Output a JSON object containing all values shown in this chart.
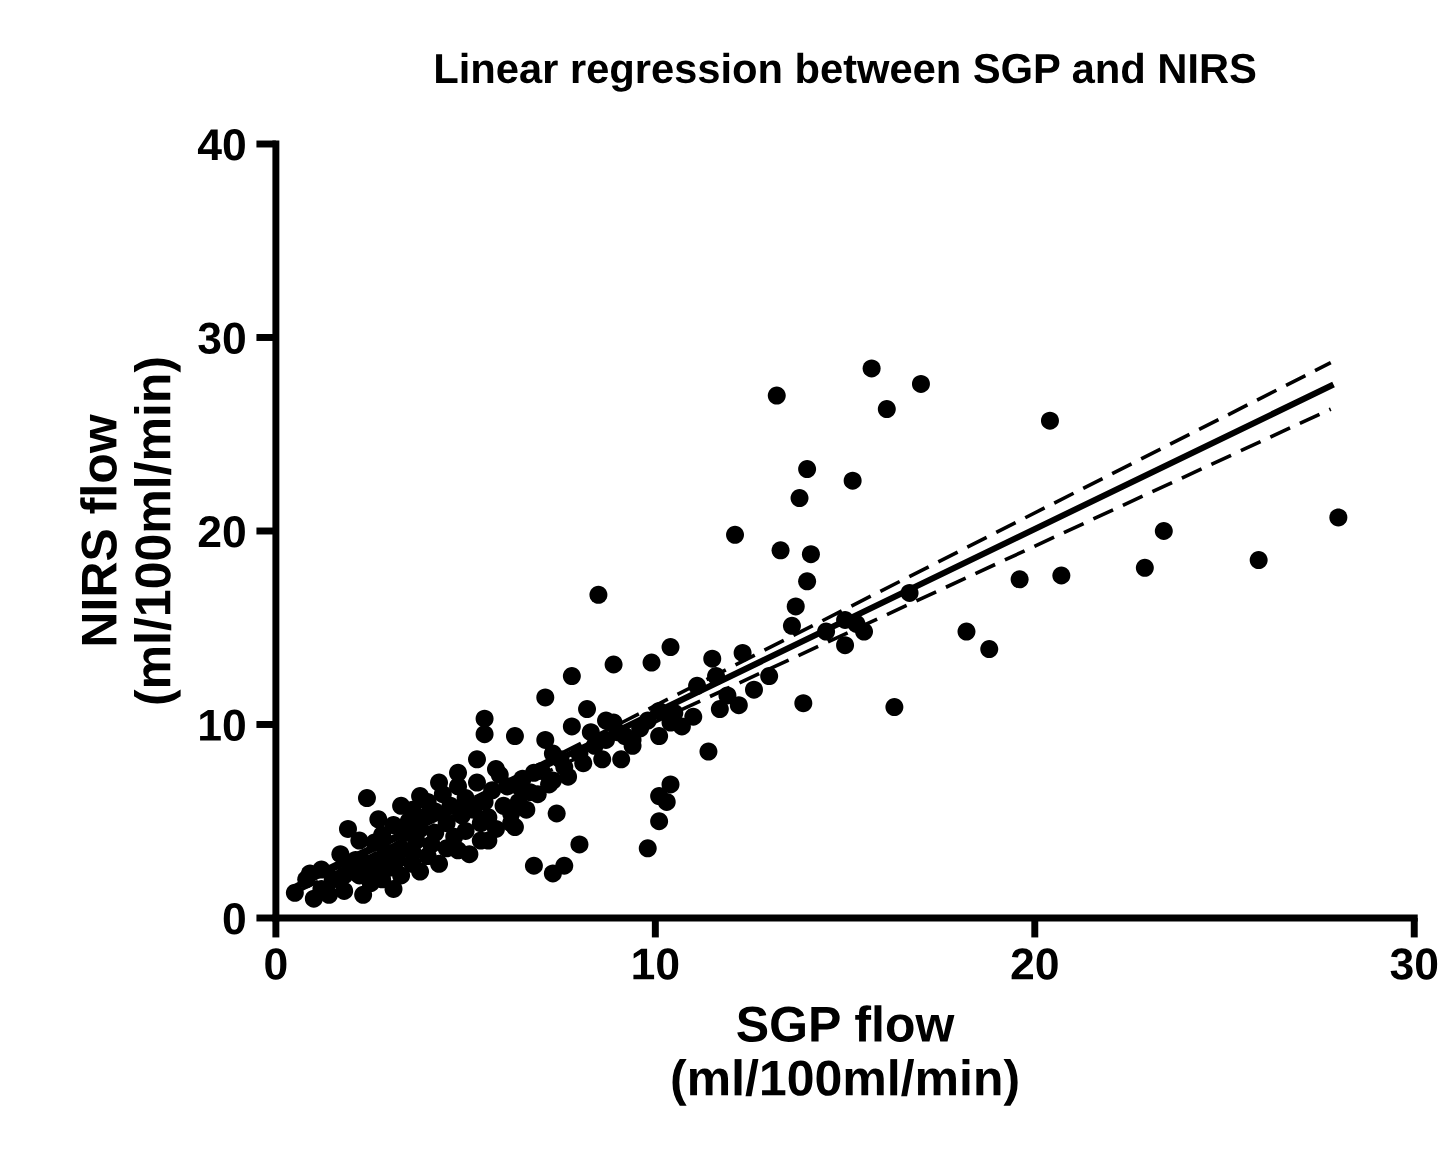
{
  "chart_data": {
    "type": "scatter",
    "title": "Linear regression between SGP and NIRS",
    "xlabel": "SGP flow\n(ml/100ml/min)",
    "ylabel": "NIRS flow\n(ml/100ml/min)",
    "xlim": [
      0,
      30
    ],
    "ylim": [
      0,
      40
    ],
    "xticks": [
      0,
      10,
      20,
      30
    ],
    "yticks": [
      0,
      10,
      20,
      30,
      40
    ],
    "grid": false,
    "series": [
      {
        "color": "#000000",
        "marker": "circle",
        "x": [
          15.7,
          17.0,
          16.1,
          13.2,
          20.4,
          14.0,
          15.2,
          13.8,
          28.0,
          12.1,
          23.4,
          25.9,
          22.9,
          13.3,
          14.1,
          14.0,
          20.7,
          19.6,
          13.7,
          13.6,
          18.2,
          18.8,
          16.7,
          15.0,
          15.5,
          15.0,
          16.3,
          13.9,
          10.4,
          9.9,
          8.9,
          8.5,
          11.5,
          12.3,
          11.6,
          13.0,
          11.1,
          11.7,
          12.2,
          11.4,
          10.1,
          10.5,
          10.7,
          10.1,
          9.4,
          8.9,
          9.1,
          8.6,
          10.4,
          10.1,
          10.3,
          10.1,
          9.8,
          7.8,
          7.1,
          5.5,
          5.5,
          6.3,
          8.2,
          2.4,
          1.9,
          7.4,
          8.0,
          6.8,
          7.3,
          7.6,
          6.3,
          5.6,
          5.8,
          5.3,
          4.8,
          4.3,
          3.8,
          3.3,
          2.7,
          2.2,
          1.7,
          1.2,
          0.8,
          0.5,
          0.9,
          3.6,
          4.8,
          5.4,
          6.2,
          6.6,
          6.9,
          7.3,
          7.6,
          8.0,
          8.4,
          8.7,
          9.2,
          9.4,
          9.8,
          8.7,
          7.8,
          7.3,
          6.8,
          6.4,
          7.1,
          1.0,
          1.2,
          1.4,
          1.5,
          1.8,
          1.8,
          2.0,
          2.1,
          2.2,
          2.3,
          2.4,
          2.5,
          2.6,
          2.6,
          2.7,
          2.8,
          2.8,
          2.9,
          3.0,
          3.1,
          3.1,
          3.2,
          3.3,
          3.3,
          3.4,
          3.5,
          3.6,
          3.6,
          3.7,
          3.8,
          3.8,
          3.9,
          4.0,
          4.0,
          4.1,
          4.2,
          4.2,
          4.3,
          4.4,
          4.5,
          4.5,
          4.6,
          4.7,
          4.8,
          4.9,
          5.0,
          5.0,
          5.1,
          5.2,
          5.3,
          5.4,
          5.5,
          5.6,
          5.7,
          5.8,
          5.9,
          6.0,
          6.1,
          6.2,
          6.4,
          6.5,
          6.7,
          7.0,
          7.2,
          7.5,
          7.7,
          8.1,
          8.3,
          9.0,
          9.6,
          10.4,
          11.0,
          11.9,
          12.6,
          14.5,
          15.3
        ],
        "values": [
          28.4,
          27.6,
          26.3,
          27.0,
          25.7,
          23.2,
          22.6,
          21.7,
          20.7,
          19.8,
          20.0,
          18.5,
          18.1,
          19.0,
          18.8,
          17.4,
          17.7,
          17.5,
          16.1,
          15.1,
          14.8,
          13.9,
          16.8,
          15.4,
          14.8,
          14.1,
          10.9,
          11.1,
          14.0,
          13.2,
          13.1,
          16.7,
          13.4,
          13.7,
          12.5,
          12.5,
          12.0,
          10.8,
          11.0,
          8.6,
          10.7,
          10.6,
          9.9,
          9.4,
          9.2,
          10.1,
          8.2,
          8.2,
          6.9,
          6.3,
          6.0,
          5.0,
          3.6,
          12.5,
          11.4,
          10.3,
          9.5,
          9.4,
          10.8,
          6.2,
          4.6,
          5.4,
          3.8,
          2.7,
          2.3,
          2.7,
          4.7,
          4.0,
          7.7,
          8.2,
          7.5,
          7.0,
          6.3,
          5.8,
          5.1,
          4.0,
          3.3,
          2.5,
          2.0,
          1.3,
          2.3,
          2.8,
          3.5,
          4.0,
          4.9,
          5.6,
          6.4,
          7.1,
          7.8,
          8.5,
          8.9,
          9.2,
          9.4,
          8.9,
          10.2,
          10.2,
          9.9,
          8.5,
          7.5,
          6.8,
          9.2,
          1.0,
          1.5,
          1.2,
          2.0,
          2.2,
          1.4,
          2.6,
          3.0,
          2.2,
          1.2,
          2.8,
          1.8,
          2.4,
          3.9,
          3.0,
          2.0,
          4.3,
          3.4,
          2.6,
          1.5,
          4.8,
          3.0,
          3.6,
          2.2,
          4.4,
          5.0,
          3.4,
          5.6,
          4.0,
          2.4,
          4.6,
          5.2,
          3.2,
          6.0,
          3.8,
          4.4,
          5.5,
          2.8,
          6.4,
          4.9,
          3.6,
          5.8,
          4.2,
          6.8,
          5.3,
          4.5,
          6.2,
          3.3,
          5.6,
          7.0,
          4.9,
          6.0,
          5.2,
          6.6,
          4.6,
          7.4,
          5.8,
          6.8,
          5.4,
          6.0,
          7.2,
          6.5,
          7.6,
          6.9,
          8.2,
          7.3,
          8.0,
          9.6,
          9.6,
          9.8,
          10.1,
          10.4,
          11.5,
          11.8,
          14.8,
          15.2
        ]
      },
      {
        "type": "line",
        "color": "#000000",
        "line_style": "solid",
        "marker": "none",
        "x": [
          0.6,
          27.8
        ],
        "values": [
          1.7,
          27.5
        ]
      },
      {
        "type": "line",
        "color": "#000000",
        "line_style": "dashed",
        "marker": "none",
        "x": [
          0.6,
          5,
          27.8
        ],
        "values": [
          1.9,
          6.0,
          28.7
        ]
      },
      {
        "type": "line",
        "color": "#000000",
        "line_style": "dashed",
        "marker": "none",
        "x": [
          0.6,
          5,
          27.8
        ],
        "values": [
          1.4,
          5.6,
          26.3
        ]
      }
    ]
  }
}
